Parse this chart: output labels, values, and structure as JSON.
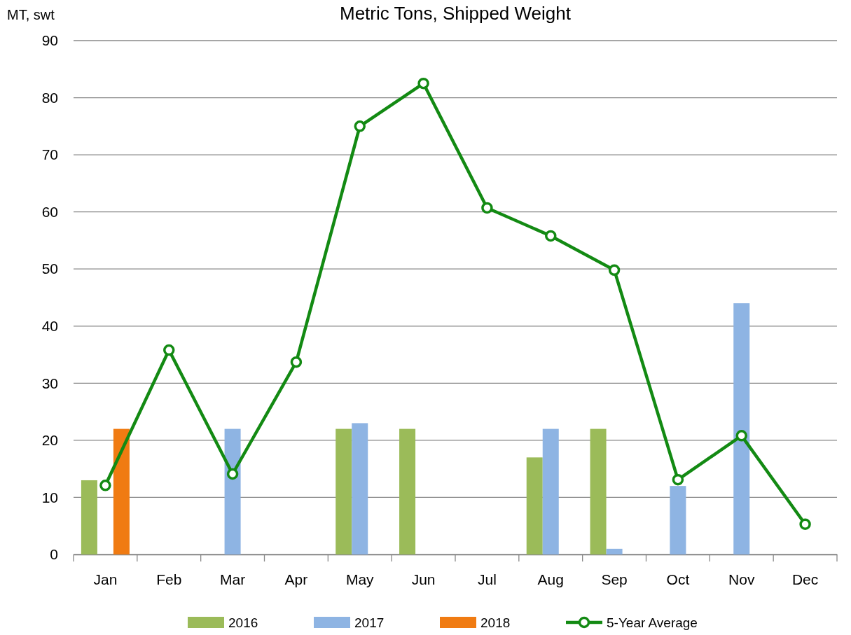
{
  "chart_data": {
    "type": "bar",
    "title": "Metric Tons, Shipped Weight",
    "ylabel": "MT, swt",
    "categories": [
      "Jan",
      "Feb",
      "Mar",
      "Apr",
      "May",
      "Jun",
      "Jul",
      "Aug",
      "Sep",
      "Oct",
      "Nov",
      "Dec"
    ],
    "series": [
      {
        "name": "2016",
        "color": "#9bbb59",
        "values": [
          13,
          null,
          null,
          null,
          22,
          22,
          null,
          17,
          22,
          null,
          null,
          null
        ]
      },
      {
        "name": "2017",
        "color": "#8eb4e3",
        "values": [
          null,
          null,
          22,
          null,
          23,
          null,
          null,
          22,
          1,
          12,
          44,
          null
        ]
      },
      {
        "name": "2018",
        "color": "#f07b12",
        "values": [
          22,
          null,
          null,
          null,
          null,
          null,
          null,
          null,
          null,
          null,
          null,
          null
        ]
      },
      {
        "name": "5-Year Average",
        "type": "line",
        "color": "#138a13",
        "marker": "circle",
        "values": [
          12.1,
          35.8,
          14.1,
          33.7,
          75,
          82.5,
          60.7,
          55.8,
          49.8,
          13.1,
          20.8,
          5.3
        ]
      }
    ],
    "ylim": [
      0,
      90
    ],
    "yticks": [
      0,
      10,
      20,
      30,
      40,
      50,
      60,
      70,
      80,
      90
    ],
    "grid": "y",
    "legend": "bottom"
  }
}
